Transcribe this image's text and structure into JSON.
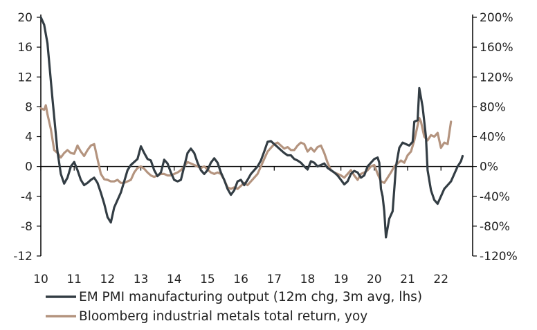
{
  "chart_data": {
    "type": "line",
    "title": "",
    "xlabel": "",
    "ylabel_left": "",
    "ylabel_right": "",
    "x_ticks": [
      "10",
      "11",
      "12",
      "13",
      "14",
      "15",
      "16",
      "17",
      "18",
      "19",
      "20",
      "21",
      "22"
    ],
    "xlim": [
      2010,
      2022.95
    ],
    "y_left": {
      "ticks": [
        "20",
        "16",
        "12",
        "8",
        "4",
        "0",
        "-4",
        "-8",
        "-12"
      ],
      "ylim": [
        -12,
        20
      ]
    },
    "y_right": {
      "ticks": [
        "200%",
        "160%",
        "120%",
        "80%",
        "40%",
        "0%",
        "-40%",
        "-80%",
        "-120%"
      ],
      "ylim": [
        -120,
        200
      ]
    },
    "zero_line": true,
    "grid": false,
    "legend_position": "bottom",
    "series": [
      {
        "name": "EM PMI manufacturing output (12m chg, 3m avg, lhs)",
        "axis": "left",
        "color": "#333d44",
        "points": [
          [
            2010.0,
            20.0
          ],
          [
            2010.1,
            19.0
          ],
          [
            2010.2,
            16.5
          ],
          [
            2010.35,
            9.0
          ],
          [
            2010.5,
            2.0
          ],
          [
            2010.6,
            -1.0
          ],
          [
            2010.7,
            -2.3
          ],
          [
            2010.8,
            -1.5
          ],
          [
            2010.9,
            0.0
          ],
          [
            2011.0,
            0.6
          ],
          [
            2011.1,
            -0.5
          ],
          [
            2011.2,
            -1.8
          ],
          [
            2011.3,
            -2.5
          ],
          [
            2011.4,
            -2.2
          ],
          [
            2011.5,
            -1.8
          ],
          [
            2011.6,
            -1.5
          ],
          [
            2011.7,
            -2.2
          ],
          [
            2011.8,
            -3.5
          ],
          [
            2011.9,
            -5.0
          ],
          [
            2012.0,
            -6.8
          ],
          [
            2012.1,
            -7.5
          ],
          [
            2012.2,
            -5.5
          ],
          [
            2012.3,
            -4.5
          ],
          [
            2012.4,
            -3.5
          ],
          [
            2012.5,
            -2.0
          ],
          [
            2012.6,
            -0.5
          ],
          [
            2012.7,
            0.2
          ],
          [
            2012.8,
            0.6
          ],
          [
            2012.9,
            1.0
          ],
          [
            2013.0,
            2.7
          ],
          [
            2013.1,
            1.8
          ],
          [
            2013.2,
            1.0
          ],
          [
            2013.3,
            0.8
          ],
          [
            2013.4,
            -0.5
          ],
          [
            2013.5,
            -1.3
          ],
          [
            2013.6,
            -0.8
          ],
          [
            2013.7,
            0.9
          ],
          [
            2013.8,
            0.4
          ],
          [
            2013.9,
            -0.8
          ],
          [
            2014.0,
            -1.8
          ],
          [
            2014.1,
            -2.0
          ],
          [
            2014.2,
            -1.8
          ],
          [
            2014.3,
            0.0
          ],
          [
            2014.4,
            1.8
          ],
          [
            2014.5,
            2.4
          ],
          [
            2014.6,
            1.8
          ],
          [
            2014.7,
            0.5
          ],
          [
            2014.8,
            -0.5
          ],
          [
            2014.9,
            -1.0
          ],
          [
            2015.0,
            -0.5
          ],
          [
            2015.1,
            0.5
          ],
          [
            2015.2,
            1.1
          ],
          [
            2015.3,
            0.5
          ],
          [
            2015.4,
            -0.8
          ],
          [
            2015.5,
            -1.8
          ],
          [
            2015.6,
            -3.0
          ],
          [
            2015.7,
            -3.8
          ],
          [
            2015.8,
            -3.2
          ],
          [
            2015.9,
            -2.0
          ],
          [
            2016.0,
            -1.8
          ],
          [
            2016.1,
            -2.5
          ],
          [
            2016.2,
            -1.8
          ],
          [
            2016.3,
            -1.0
          ],
          [
            2016.4,
            -0.5
          ],
          [
            2016.5,
            0.0
          ],
          [
            2016.6,
            0.8
          ],
          [
            2016.7,
            2.0
          ],
          [
            2016.8,
            3.3
          ],
          [
            2016.9,
            3.4
          ],
          [
            2017.0,
            3.0
          ],
          [
            2017.1,
            2.6
          ],
          [
            2017.2,
            2.2
          ],
          [
            2017.3,
            1.8
          ],
          [
            2017.4,
            1.5
          ],
          [
            2017.5,
            1.5
          ],
          [
            2017.6,
            1.0
          ],
          [
            2017.7,
            0.8
          ],
          [
            2017.8,
            0.5
          ],
          [
            2017.9,
            0.0
          ],
          [
            2018.0,
            -0.4
          ],
          [
            2018.1,
            0.7
          ],
          [
            2018.2,
            0.5
          ],
          [
            2018.3,
            0.0
          ],
          [
            2018.4,
            0.2
          ],
          [
            2018.5,
            0.4
          ],
          [
            2018.6,
            -0.2
          ],
          [
            2018.7,
            -0.5
          ],
          [
            2018.8,
            -0.8
          ],
          [
            2018.9,
            -1.2
          ],
          [
            2019.0,
            -1.8
          ],
          [
            2019.1,
            -2.4
          ],
          [
            2019.2,
            -2.0
          ],
          [
            2019.3,
            -1.0
          ],
          [
            2019.4,
            -0.6
          ],
          [
            2019.5,
            -0.8
          ],
          [
            2019.6,
            -1.5
          ],
          [
            2019.7,
            -1.2
          ],
          [
            2019.8,
            0.0
          ],
          [
            2019.9,
            0.5
          ],
          [
            2020.0,
            1.0
          ],
          [
            2020.1,
            1.2
          ],
          [
            2020.15,
            0.5
          ],
          [
            2020.2,
            -3.0
          ],
          [
            2020.25,
            -4.0
          ],
          [
            2020.3,
            -6.0
          ],
          [
            2020.35,
            -9.5
          ],
          [
            2020.45,
            -7.0
          ],
          [
            2020.55,
            -6.0
          ],
          [
            2020.65,
            0.0
          ],
          [
            2020.75,
            2.5
          ],
          [
            2020.85,
            3.2
          ],
          [
            2020.95,
            3.0
          ],
          [
            2021.05,
            2.8
          ],
          [
            2021.15,
            3.3
          ],
          [
            2021.2,
            6.0
          ],
          [
            2021.3,
            6.2
          ],
          [
            2021.35,
            10.5
          ],
          [
            2021.45,
            8.0
          ],
          [
            2021.55,
            4.0
          ],
          [
            2021.6,
            -0.5
          ],
          [
            2021.7,
            -3.2
          ],
          [
            2021.8,
            -4.5
          ],
          [
            2021.9,
            -5.0
          ],
          [
            2022.0,
            -4.0
          ],
          [
            2022.1,
            -3.0
          ],
          [
            2022.2,
            -2.5
          ],
          [
            2022.3,
            -2.0
          ],
          [
            2022.4,
            -1.0
          ],
          [
            2022.5,
            0.0
          ],
          [
            2022.6,
            0.7
          ],
          [
            2022.65,
            1.4
          ]
        ]
      },
      {
        "name": "Bloomberg industrial metals total return, yoy",
        "axis": "right",
        "color": "#b4947f",
        "points": [
          [
            2010.0,
            78
          ],
          [
            2010.1,
            76
          ],
          [
            2010.15,
            82
          ],
          [
            2010.2,
            70
          ],
          [
            2010.3,
            50
          ],
          [
            2010.4,
            22
          ],
          [
            2010.5,
            18
          ],
          [
            2010.6,
            12
          ],
          [
            2010.7,
            18
          ],
          [
            2010.8,
            22
          ],
          [
            2010.9,
            18
          ],
          [
            2011.0,
            17
          ],
          [
            2011.1,
            28
          ],
          [
            2011.2,
            20
          ],
          [
            2011.3,
            14
          ],
          [
            2011.4,
            22
          ],
          [
            2011.5,
            28
          ],
          [
            2011.6,
            30
          ],
          [
            2011.7,
            10
          ],
          [
            2011.8,
            -10
          ],
          [
            2011.9,
            -17
          ],
          [
            2012.0,
            -18
          ],
          [
            2012.1,
            -20
          ],
          [
            2012.2,
            -20
          ],
          [
            2012.3,
            -18
          ],
          [
            2012.4,
            -22
          ],
          [
            2012.5,
            -22
          ],
          [
            2012.6,
            -20
          ],
          [
            2012.7,
            -18
          ],
          [
            2012.8,
            -8
          ],
          [
            2012.9,
            -2
          ],
          [
            2013.0,
            0
          ],
          [
            2013.1,
            -3
          ],
          [
            2013.2,
            -8
          ],
          [
            2013.3,
            -12
          ],
          [
            2013.4,
            -14
          ],
          [
            2013.5,
            -12
          ],
          [
            2013.6,
            -10
          ],
          [
            2013.7,
            -10
          ],
          [
            2013.8,
            -12
          ],
          [
            2013.9,
            -12
          ],
          [
            2014.0,
            -10
          ],
          [
            2014.1,
            -8
          ],
          [
            2014.2,
            -5
          ],
          [
            2014.3,
            0
          ],
          [
            2014.4,
            6
          ],
          [
            2014.5,
            4
          ],
          [
            2014.6,
            2
          ],
          [
            2014.7,
            0
          ],
          [
            2014.8,
            -2
          ],
          [
            2014.9,
            0
          ],
          [
            2015.0,
            -4
          ],
          [
            2015.1,
            -8
          ],
          [
            2015.2,
            -10
          ],
          [
            2015.3,
            -8
          ],
          [
            2015.4,
            -10
          ],
          [
            2015.5,
            -18
          ],
          [
            2015.6,
            -28
          ],
          [
            2015.7,
            -30
          ],
          [
            2015.8,
            -28
          ],
          [
            2015.9,
            -30
          ],
          [
            2016.0,
            -26
          ],
          [
            2016.1,
            -22
          ],
          [
            2016.2,
            -25
          ],
          [
            2016.3,
            -20
          ],
          [
            2016.4,
            -15
          ],
          [
            2016.5,
            -10
          ],
          [
            2016.6,
            0
          ],
          [
            2016.7,
            10
          ],
          [
            2016.8,
            20
          ],
          [
            2016.9,
            25
          ],
          [
            2017.0,
            30
          ],
          [
            2017.1,
            32
          ],
          [
            2017.2,
            28
          ],
          [
            2017.3,
            24
          ],
          [
            2017.4,
            26
          ],
          [
            2017.5,
            22
          ],
          [
            2017.6,
            22
          ],
          [
            2017.7,
            28
          ],
          [
            2017.8,
            32
          ],
          [
            2017.9,
            30
          ],
          [
            2018.0,
            20
          ],
          [
            2018.1,
            25
          ],
          [
            2018.2,
            20
          ],
          [
            2018.3,
            26
          ],
          [
            2018.4,
            28
          ],
          [
            2018.5,
            18
          ],
          [
            2018.6,
            5
          ],
          [
            2018.7,
            -5
          ],
          [
            2018.8,
            -8
          ],
          [
            2018.9,
            -10
          ],
          [
            2019.0,
            -12
          ],
          [
            2019.1,
            -15
          ],
          [
            2019.2,
            -10
          ],
          [
            2019.3,
            -5
          ],
          [
            2019.4,
            -12
          ],
          [
            2019.5,
            -18
          ],
          [
            2019.6,
            -10
          ],
          [
            2019.7,
            -8
          ],
          [
            2019.8,
            -5
          ],
          [
            2019.9,
            0
          ],
          [
            2020.0,
            2
          ],
          [
            2020.1,
            -10
          ],
          [
            2020.2,
            -20
          ],
          [
            2020.3,
            -22
          ],
          [
            2020.4,
            -15
          ],
          [
            2020.5,
            -8
          ],
          [
            2020.6,
            0
          ],
          [
            2020.7,
            4
          ],
          [
            2020.8,
            8
          ],
          [
            2020.9,
            5
          ],
          [
            2021.0,
            15
          ],
          [
            2021.1,
            20
          ],
          [
            2021.2,
            35
          ],
          [
            2021.3,
            55
          ],
          [
            2021.35,
            65
          ],
          [
            2021.4,
            60
          ],
          [
            2021.5,
            40
          ],
          [
            2021.6,
            35
          ],
          [
            2021.7,
            42
          ],
          [
            2021.8,
            40
          ],
          [
            2021.9,
            45
          ],
          [
            2022.0,
            25
          ],
          [
            2022.1,
            32
          ],
          [
            2022.2,
            30
          ],
          [
            2022.3,
            60
          ]
        ]
      }
    ]
  }
}
